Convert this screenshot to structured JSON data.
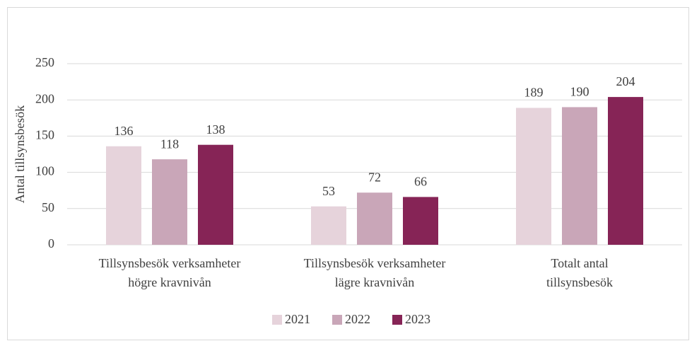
{
  "chart_data": {
    "type": "bar",
    "y_label": "Antal tillsynsbesök",
    "categories": [
      "Tillsynsbesök verksamheter högre kravnivån",
      "Tillsynsbesök verksamheter lägre kravnivån",
      "Totalt antal tillsynsbesök"
    ],
    "series": [
      {
        "name": "2021",
        "color": "#e6d3db",
        "values": [
          136,
          53,
          189
        ]
      },
      {
        "name": "2022",
        "color": "#c9a6b8",
        "values": [
          118,
          72,
          190
        ]
      },
      {
        "name": "2023",
        "color": "#862456",
        "values": [
          138,
          66,
          204
        ]
      }
    ],
    "ylim": [
      0,
      250
    ],
    "yticks": [
      0,
      50,
      100,
      150,
      200,
      250
    ],
    "grid": true,
    "legend": "bottom"
  }
}
